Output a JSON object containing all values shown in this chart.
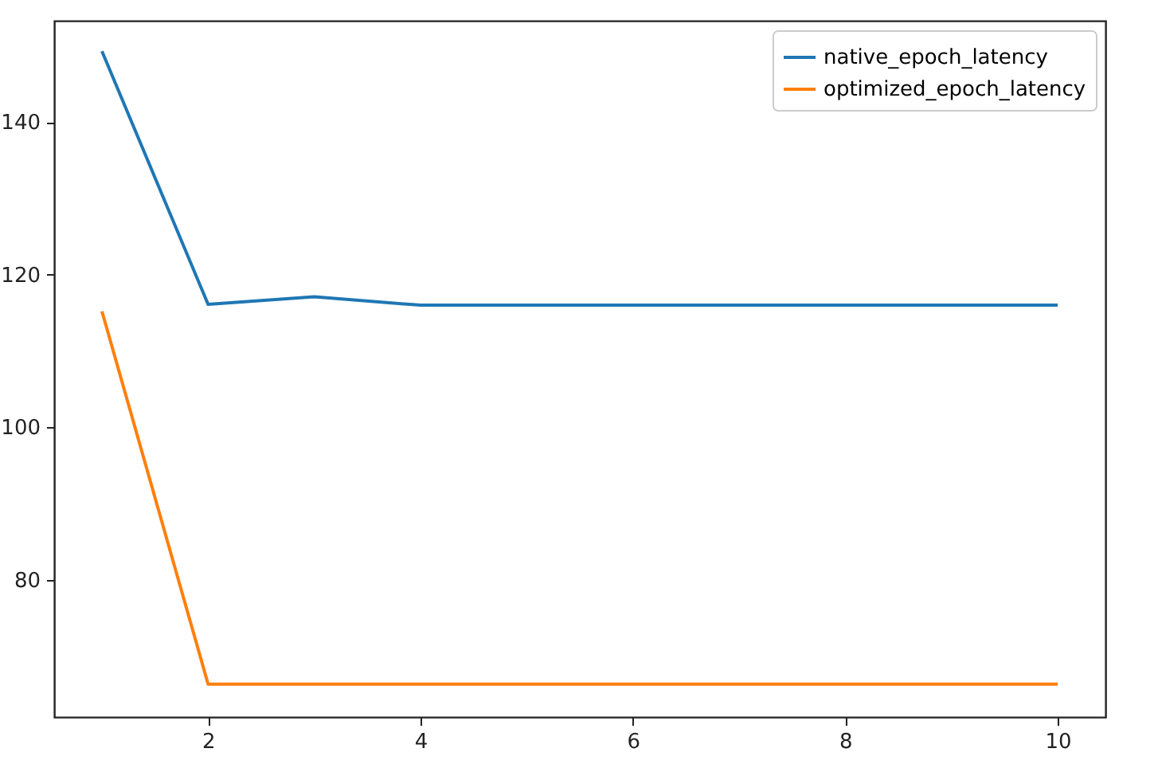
{
  "chart_data": {
    "type": "line",
    "x": [
      1,
      2,
      3,
      4,
      5,
      6,
      7,
      8,
      9,
      10
    ],
    "series": [
      {
        "name": "native_epoch_latency",
        "color": "#1f77b4",
        "values": [
          149.3,
          116.1,
          117.1,
          116,
          116,
          116,
          116,
          116,
          116,
          116
        ]
      },
      {
        "name": "optimized_epoch_latency",
        "color": "#ff7f0e",
        "values": [
          115.2,
          66.3,
          66.3,
          66.3,
          66.3,
          66.3,
          66.3,
          66.3,
          66.3,
          66.3
        ]
      }
    ],
    "xlim": [
      0.55,
      10.45
    ],
    "ylim": [
      62,
      153.3
    ],
    "xticks": [
      2,
      4,
      6,
      8,
      10
    ],
    "yticks": [
      80,
      100,
      120,
      140
    ],
    "grid": false,
    "legend": "top right",
    "marker": "none",
    "line_style": "solid"
  }
}
